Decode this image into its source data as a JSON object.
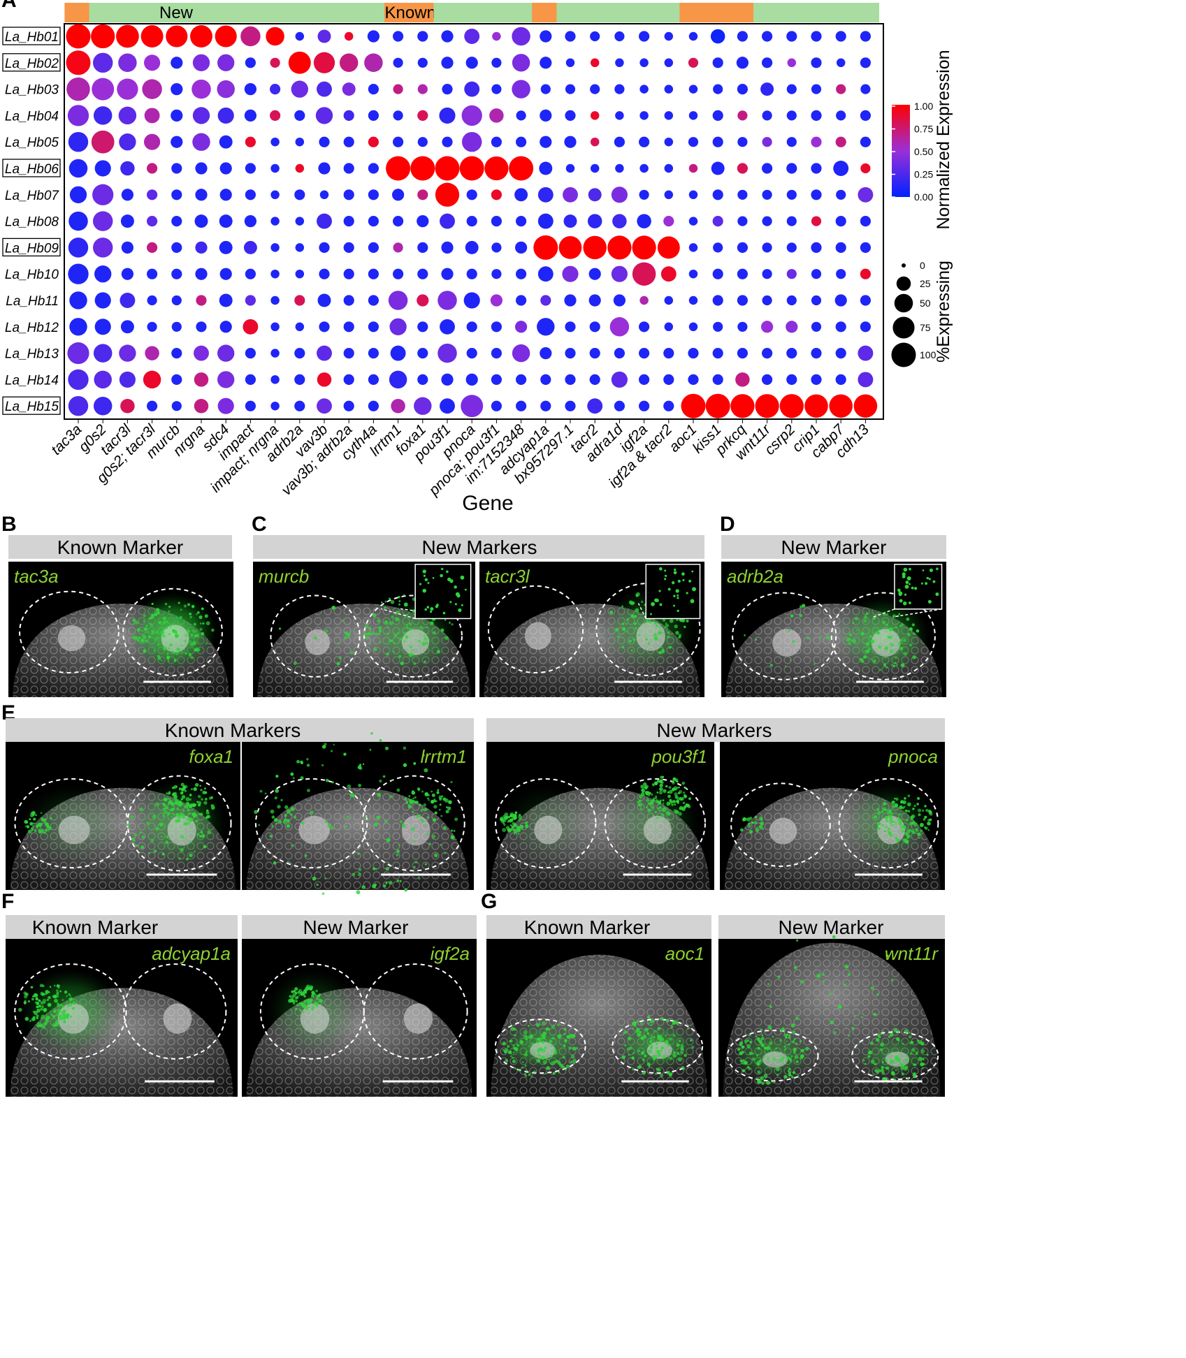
{
  "panel_letters": [
    "A",
    "B",
    "C",
    "D",
    "E",
    "F",
    "G"
  ],
  "chart_data": {
    "type": "dotplot",
    "xlabel": "Gene",
    "clusters": [
      "La_Hb01",
      "La_Hb02",
      "La_Hb03",
      "La_Hb04",
      "La_Hb05",
      "La_Hb06",
      "La_Hb07",
      "La_Hb08",
      "La_Hb09",
      "La_Hb10",
      "La_Hb11",
      "La_Hb12",
      "La_Hb13",
      "La_Hb14",
      "La_Hb15"
    ],
    "boxed_clusters": [
      "La_Hb01",
      "La_Hb02",
      "La_Hb06",
      "La_Hb09",
      "La_Hb15"
    ],
    "genes": [
      "tac3a",
      "g0s2",
      "tacr3l",
      "g0s2; tacr3l",
      "murcb",
      "nrgna",
      "sdc4",
      "impact",
      "impact; nrgna",
      "adrb2a",
      "vav3b",
      "vav3b; adrb2a",
      "cyth4a",
      "lrrtm1",
      "foxa1",
      "pou3f1",
      "pnoca",
      "pnoca; pou3f1",
      "im:7152348",
      "adcyap1a",
      "bx957297.1",
      "tacr2",
      "adra1d",
      "igf2a",
      "igf2a & tacr2",
      "aoc1",
      "kiss1",
      "prkcq",
      "wnt11r",
      "csrp2",
      "crip1",
      "cabp7",
      "cdh13"
    ],
    "header_segments": [
      {
        "label": "",
        "start": 0,
        "end": 0,
        "color": "#f79646"
      },
      {
        "label": "New",
        "start": 1,
        "end": 12,
        "color": "#a8dca0"
      },
      {
        "label": "Known",
        "start": 13,
        "end": 14,
        "color": "#f79646"
      },
      {
        "label": "",
        "start": 15,
        "end": 18,
        "color": "#a8dca0"
      },
      {
        "label": "",
        "start": 19,
        "end": 19,
        "color": "#f79646"
      },
      {
        "label": "",
        "start": 20,
        "end": 24,
        "color": "#a8dca0"
      },
      {
        "label": "",
        "start": 25,
        "end": 27,
        "color": "#f79646"
      },
      {
        "label": "",
        "start": 28,
        "end": 32,
        "color": "#a8dca0"
      }
    ],
    "expression": [
      [
        1.0,
        1.0,
        1.0,
        1.0,
        1.0,
        1.0,
        1.0,
        0.7,
        1.0,
        0.1,
        0.3,
        0.9,
        0.1,
        0.1,
        0.1,
        0.1,
        0.3,
        0.5,
        0.35,
        0.1,
        0.1,
        0.1,
        0.1,
        0.1,
        0.1,
        0.1,
        0.05,
        0.1,
        0.1,
        0.1,
        0.1,
        0.1,
        0.1
      ],
      [
        0.95,
        0.3,
        0.4,
        0.5,
        0.1,
        0.4,
        0.4,
        0.1,
        0.8,
        1.0,
        0.85,
        0.7,
        0.6,
        0.1,
        0.1,
        0.1,
        0.1,
        0.1,
        0.4,
        0.1,
        0.1,
        0.9,
        0.1,
        0.1,
        0.1,
        0.8,
        0.1,
        0.1,
        0.1,
        0.5,
        0.1,
        0.1,
        0.1
      ],
      [
        0.6,
        0.5,
        0.5,
        0.6,
        0.1,
        0.5,
        0.45,
        0.1,
        0.2,
        0.35,
        0.25,
        0.4,
        0.1,
        0.7,
        0.6,
        0.1,
        0.2,
        0.1,
        0.4,
        0.1,
        0.1,
        0.1,
        0.1,
        0.1,
        0.1,
        0.1,
        0.1,
        0.1,
        0.15,
        0.1,
        0.1,
        0.7,
        0.1
      ],
      [
        0.4,
        0.2,
        0.3,
        0.6,
        0.1,
        0.3,
        0.2,
        0.1,
        0.8,
        0.1,
        0.3,
        0.2,
        0.1,
        0.1,
        0.8,
        0.15,
        0.45,
        0.6,
        0.1,
        0.1,
        0.1,
        0.9,
        0.1,
        0.1,
        0.1,
        0.1,
        0.1,
        0.7,
        0.1,
        0.1,
        0.1,
        0.1,
        0.1
      ],
      [
        0.15,
        0.75,
        0.25,
        0.6,
        0.1,
        0.4,
        0.1,
        0.9,
        0.1,
        0.1,
        0.1,
        0.1,
        0.9,
        0.1,
        0.1,
        0.1,
        0.4,
        0.1,
        0.1,
        0.1,
        0.1,
        0.8,
        0.1,
        0.1,
        0.1,
        0.1,
        0.1,
        0.1,
        0.4,
        0.1,
        0.5,
        0.7,
        0.1
      ],
      [
        0.1,
        0.1,
        0.2,
        0.7,
        0.1,
        0.1,
        0.1,
        0.1,
        0.1,
        0.9,
        0.1,
        0.1,
        0.1,
        1.0,
        1.0,
        1.0,
        1.0,
        1.0,
        1.0,
        0.1,
        0.1,
        0.1,
        0.1,
        0.1,
        0.1,
        0.7,
        0.1,
        0.8,
        0.1,
        0.1,
        0.1,
        0.1,
        0.9
      ],
      [
        0.1,
        0.35,
        0.1,
        0.3,
        0.1,
        0.1,
        0.1,
        0.1,
        0.1,
        0.1,
        0.1,
        0.1,
        0.1,
        0.1,
        0.7,
        1.0,
        0.1,
        0.9,
        0.1,
        0.15,
        0.4,
        0.25,
        0.4,
        0.1,
        0.1,
        0.1,
        0.1,
        0.1,
        0.1,
        0.1,
        0.1,
        0.1,
        0.35
      ],
      [
        0.1,
        0.35,
        0.1,
        0.3,
        0.1,
        0.1,
        0.1,
        0.1,
        0.1,
        0.1,
        0.2,
        0.1,
        0.1,
        0.1,
        0.1,
        0.2,
        0.1,
        0.1,
        0.1,
        0.1,
        0.15,
        0.15,
        0.2,
        0.1,
        0.5,
        0.1,
        0.3,
        0.1,
        0.1,
        0.1,
        0.85,
        0.1,
        0.1
      ],
      [
        0.15,
        0.35,
        0.1,
        0.7,
        0.1,
        0.2,
        0.1,
        0.2,
        0.1,
        0.1,
        0.1,
        0.1,
        0.1,
        0.6,
        0.1,
        0.1,
        0.1,
        0.1,
        0.1,
        1.0,
        1.0,
        1.0,
        1.0,
        1.0,
        1.0,
        0.1,
        0.1,
        0.1,
        0.1,
        0.1,
        0.1,
        0.1,
        0.1
      ],
      [
        0.1,
        0.1,
        0.1,
        0.1,
        0.1,
        0.1,
        0.1,
        0.1,
        0.1,
        0.1,
        0.1,
        0.1,
        0.1,
        0.1,
        0.1,
        0.1,
        0.1,
        0.1,
        0.1,
        0.1,
        0.4,
        0.1,
        0.35,
        0.8,
        0.9,
        0.1,
        0.1,
        0.1,
        0.1,
        0.35,
        0.1,
        0.1,
        0.9
      ],
      [
        0.1,
        0.1,
        0.2,
        0.1,
        0.1,
        0.7,
        0.1,
        0.3,
        0.1,
        0.8,
        0.1,
        0.1,
        0.1,
        0.4,
        0.8,
        0.4,
        0.1,
        0.5,
        0.1,
        0.3,
        0.1,
        0.1,
        0.1,
        0.6,
        0.1,
        0.1,
        0.1,
        0.1,
        0.1,
        0.1,
        0.1,
        0.1,
        0.1
      ],
      [
        0.1,
        0.1,
        0.1,
        0.1,
        0.1,
        0.1,
        0.1,
        0.9,
        0.1,
        0.1,
        0.1,
        0.1,
        0.1,
        0.35,
        0.1,
        0.1,
        0.1,
        0.1,
        0.4,
        0.1,
        0.1,
        0.1,
        0.5,
        0.1,
        0.1,
        0.1,
        0.1,
        0.1,
        0.5,
        0.45,
        0.1,
        0.1,
        0.1
      ],
      [
        0.35,
        0.25,
        0.35,
        0.6,
        0.1,
        0.4,
        0.35,
        0.1,
        0.1,
        0.1,
        0.3,
        0.1,
        0.1,
        0.1,
        0.1,
        0.35,
        0.1,
        0.1,
        0.4,
        0.1,
        0.1,
        0.1,
        0.1,
        0.1,
        0.1,
        0.1,
        0.1,
        0.1,
        0.1,
        0.1,
        0.1,
        0.1,
        0.3
      ],
      [
        0.25,
        0.3,
        0.25,
        0.9,
        0.1,
        0.7,
        0.4,
        0.1,
        0.1,
        0.1,
        0.9,
        0.1,
        0.1,
        0.15,
        0.1,
        0.1,
        0.1,
        0.1,
        0.1,
        0.1,
        0.1,
        0.1,
        0.3,
        0.1,
        0.1,
        0.1,
        0.1,
        0.7,
        0.1,
        0.1,
        0.1,
        0.1,
        0.3
      ],
      [
        0.25,
        0.2,
        0.8,
        0.1,
        0.1,
        0.7,
        0.4,
        0.1,
        0.1,
        0.1,
        0.35,
        0.1,
        0.1,
        0.6,
        0.35,
        0.1,
        0.4,
        0.1,
        0.1,
        0.1,
        0.1,
        0.2,
        0.1,
        0.1,
        0.1,
        1.0,
        1.0,
        1.0,
        1.0,
        1.0,
        1.0,
        1.0,
        1.0
      ]
    ],
    "pct_expressing": [
      [
        100,
        95,
        85,
        80,
        75,
        80,
        75,
        60,
        50,
        5,
        20,
        5,
        15,
        10,
        10,
        15,
        30,
        5,
        50,
        15,
        10,
        8,
        8,
        10,
        5,
        5,
        25,
        10,
        10,
        10,
        10,
        10,
        10
      ],
      [
        100,
        60,
        50,
        35,
        15,
        40,
        40,
        10,
        8,
        80,
        70,
        50,
        50,
        8,
        8,
        15,
        15,
        8,
        45,
        15,
        5,
        5,
        5,
        5,
        5,
        8,
        10,
        15,
        10,
        5,
        10,
        5,
        10
      ],
      [
        90,
        80,
        70,
        60,
        15,
        55,
        45,
        15,
        10,
        40,
        30,
        20,
        10,
        8,
        8,
        10,
        30,
        8,
        50,
        8,
        8,
        8,
        8,
        5,
        5,
        5,
        8,
        10,
        20,
        8,
        8,
        8,
        8
      ],
      [
        70,
        50,
        45,
        30,
        15,
        40,
        35,
        15,
        10,
        10,
        40,
        10,
        10,
        8,
        10,
        35,
        65,
        25,
        8,
        15,
        10,
        5,
        5,
        5,
        5,
        5,
        10,
        8,
        8,
        8,
        10,
        8,
        10
      ],
      [
        60,
        85,
        40,
        35,
        15,
        45,
        20,
        10,
        5,
        5,
        10,
        10,
        10,
        10,
        8,
        10,
        60,
        10,
        10,
        15,
        15,
        5,
        10,
        10,
        5,
        8,
        10,
        8,
        8,
        8,
        10,
        10,
        10
      ],
      [
        50,
        35,
        25,
        10,
        10,
        15,
        15,
        10,
        5,
        5,
        15,
        10,
        10,
        100,
        100,
        100,
        100,
        95,
        100,
        20,
        5,
        5,
        5,
        5,
        5,
        5,
        20,
        10,
        10,
        10,
        10,
        30,
        8
      ],
      [
        40,
        70,
        15,
        10,
        10,
        15,
        15,
        10,
        5,
        10,
        5,
        10,
        10,
        15,
        10,
        95,
        10,
        10,
        20,
        30,
        30,
        20,
        35,
        8,
        5,
        5,
        10,
        8,
        8,
        8,
        10,
        8,
        30
      ],
      [
        55,
        60,
        20,
        10,
        10,
        20,
        20,
        15,
        5,
        5,
        30,
        10,
        10,
        10,
        15,
        30,
        10,
        10,
        10,
        30,
        20,
        25,
        25,
        25,
        10,
        5,
        10,
        8,
        8,
        8,
        8,
        10,
        10
      ],
      [
        60,
        60,
        15,
        10,
        10,
        15,
        20,
        20,
        5,
        5,
        10,
        10,
        10,
        8,
        10,
        15,
        20,
        8,
        15,
        100,
        85,
        90,
        95,
        95,
        80,
        5,
        8,
        10,
        8,
        8,
        10,
        10,
        10
      ],
      [
        65,
        40,
        15,
        10,
        10,
        15,
        15,
        10,
        5,
        5,
        10,
        10,
        10,
        10,
        10,
        15,
        10,
        8,
        10,
        30,
        35,
        15,
        35,
        90,
        30,
        5,
        10,
        10,
        8,
        8,
        8,
        8,
        10
      ],
      [
        45,
        35,
        30,
        8,
        8,
        10,
        20,
        10,
        5,
        10,
        20,
        10,
        10,
        55,
        15,
        55,
        35,
        15,
        10,
        10,
        15,
        15,
        15,
        5,
        5,
        5,
        10,
        10,
        8,
        8,
        8,
        15,
        10
      ],
      [
        45,
        35,
        20,
        8,
        8,
        10,
        15,
        30,
        5,
        5,
        10,
        10,
        10,
        40,
        10,
        30,
        10,
        10,
        15,
        45,
        10,
        10,
        55,
        10,
        5,
        5,
        8,
        8,
        15,
        15,
        8,
        10,
        10
      ],
      [
        75,
        50,
        40,
        25,
        10,
        30,
        40,
        10,
        5,
        10,
        30,
        10,
        10,
        30,
        10,
        55,
        10,
        10,
        45,
        15,
        10,
        10,
        10,
        10,
        10,
        10,
        10,
        10,
        10,
        10,
        10,
        10,
        30
      ],
      [
        65,
        45,
        35,
        45,
        10,
        25,
        40,
        10,
        5,
        10,
        25,
        10,
        10,
        45,
        10,
        15,
        15,
        10,
        10,
        10,
        10,
        10,
        35,
        10,
        10,
        10,
        10,
        25,
        10,
        10,
        10,
        10,
        30
      ],
      [
        60,
        50,
        25,
        10,
        8,
        25,
        35,
        10,
        5,
        10,
        30,
        10,
        10,
        25,
        45,
        30,
        80,
        10,
        10,
        10,
        10,
        30,
        10,
        10,
        10,
        100,
        100,
        95,
        95,
        95,
        90,
        90,
        90
      ]
    ],
    "color_legend": {
      "title": "Normalized Expression",
      "ticks": [
        "1.00",
        "0.75",
        "0.50",
        "0.25",
        "0.00"
      ],
      "low": "#0022ff",
      "mid": "#9a2fd8",
      "high": "#ff0000"
    },
    "size_legend": {
      "title": "%Expressing",
      "values": [
        0,
        25,
        50,
        75,
        100
      ],
      "labels": [
        "0",
        "25",
        "50",
        "75",
        "100"
      ]
    }
  },
  "panels": [
    {
      "id": "B",
      "headers": [
        "Known Marker"
      ],
      "images": [
        {
          "gene": "tac3a",
          "label_pos": "left"
        }
      ]
    },
    {
      "id": "C",
      "headers": [
        "New Markers"
      ],
      "images": [
        {
          "gene": "murcb",
          "label_pos": "left"
        },
        {
          "gene": "tacr3l",
          "label_pos": "left"
        }
      ]
    },
    {
      "id": "D",
      "headers": [
        "New Marker"
      ],
      "images": [
        {
          "gene": "adrb2a",
          "label_pos": "left"
        }
      ]
    },
    {
      "id": "E",
      "headers": [
        "Known Markers",
        "New Markers"
      ],
      "images": [
        {
          "gene": "foxa1",
          "label_pos": "right"
        },
        {
          "gene": "lrrtm1",
          "label_pos": "right"
        },
        {
          "gene": "pou3f1",
          "label_pos": "right"
        },
        {
          "gene": "pnoca",
          "label_pos": "right"
        }
      ]
    },
    {
      "id": "F",
      "headers": [
        "Known Marker",
        "New Marker"
      ],
      "images": [
        {
          "gene": "adcyap1a",
          "label_pos": "right"
        },
        {
          "gene": "igf2a",
          "label_pos": "right"
        }
      ]
    },
    {
      "id": "G",
      "headers": [
        "Known Marker",
        "New Marker"
      ],
      "images": [
        {
          "gene": "aoc1",
          "label_pos": "right"
        },
        {
          "gene": "wnt11r",
          "label_pos": "right"
        }
      ]
    }
  ],
  "colors": {
    "header_gray": "#d3d3d3",
    "marker_green": "#8fd22f",
    "signal_green": "#2fd33a",
    "known_orange": "#f79646",
    "new_green": "#a8dca0"
  }
}
